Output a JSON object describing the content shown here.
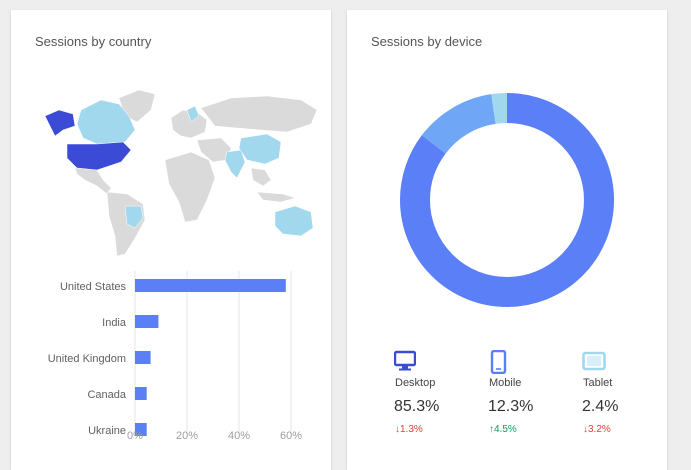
{
  "cards": {
    "country": {
      "title": "Sessions by country",
      "map_colors": {
        "land": "#dadada",
        "highlight_strong": "#3b4bd6",
        "highlight_light": "#a2d8ee"
      },
      "chart_data": {
        "type": "bar",
        "orientation": "horizontal",
        "categories": [
          "United States",
          "India",
          "United Kingdom",
          "Canada",
          "Ukraine"
        ],
        "values": [
          58,
          9,
          6,
          4.5,
          4.5
        ],
        "xticks": [
          "0%",
          "20%",
          "40%",
          "60%"
        ],
        "xlim": [
          0,
          65
        ],
        "bar_color": "#5b7ff7",
        "grid": "vertical"
      }
    },
    "device": {
      "title": "Sessions by device",
      "chart_data": {
        "type": "pie",
        "donut": true,
        "categories": [
          "Desktop",
          "Mobile",
          "Tablet"
        ],
        "values": [
          85.3,
          12.3,
          2.4
        ],
        "colors": [
          "#5b7ff7",
          "#6fa6f5",
          "#a2d8ee"
        ]
      },
      "devices": [
        {
          "name": "Desktop",
          "icon": "desktop-icon",
          "pct": "85.3%",
          "change": "1.3%",
          "direction": "down",
          "arrow": "↓"
        },
        {
          "name": "Mobile",
          "icon": "mobile-icon",
          "pct": "12.3%",
          "change": "4.5%",
          "direction": "up",
          "arrow": "↑"
        },
        {
          "name": "Tablet",
          "icon": "tablet-icon",
          "pct": "2.4%",
          "change": "3.2%",
          "direction": "down",
          "arrow": "↓"
        }
      ]
    }
  }
}
